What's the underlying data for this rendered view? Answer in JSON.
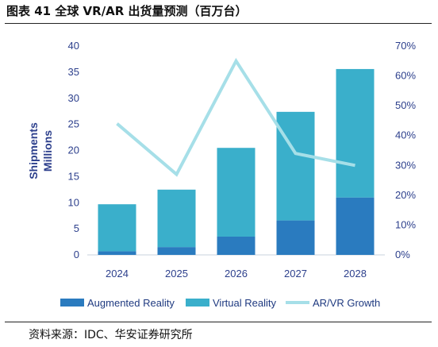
{
  "title": "图表 41 全球 VR/AR 出货量预测（百万台）",
  "source": "资料来源：IDC、华安证券研究所",
  "colors": {
    "augmented": "#2a7bbf",
    "virtual": "#3aafcb",
    "growth": "#a6dfe8",
    "axis_text": "#2c3f8c"
  },
  "chart_data": {
    "type": "bar",
    "stacked": true,
    "categories": [
      "2024",
      "2025",
      "2026",
      "2027",
      "2028"
    ],
    "series": [
      {
        "name": "Augmented Reality",
        "type": "bar",
        "axis": "left",
        "values": [
          0.7,
          1.5,
          3.5,
          6.6,
          11.0
        ]
      },
      {
        "name": "Virtual Reality",
        "type": "bar",
        "axis": "left",
        "values": [
          9.0,
          11.0,
          17.0,
          20.8,
          24.6
        ]
      },
      {
        "name": "AR/VR Growth",
        "type": "line",
        "axis": "right",
        "values": [
          44,
          27,
          65,
          34,
          30
        ]
      }
    ],
    "ylabel": [
      "Shipments",
      "Millions"
    ],
    "ylim": [
      0,
      40
    ],
    "yticks": [
      0,
      5,
      10,
      15,
      20,
      25,
      30,
      35,
      40
    ],
    "y2lim": [
      0,
      70
    ],
    "y2ticks": [
      "0%",
      "10%",
      "20%",
      "30%",
      "40%",
      "50%",
      "60%",
      "70%"
    ],
    "legend_position": "bottom",
    "grid": false
  }
}
